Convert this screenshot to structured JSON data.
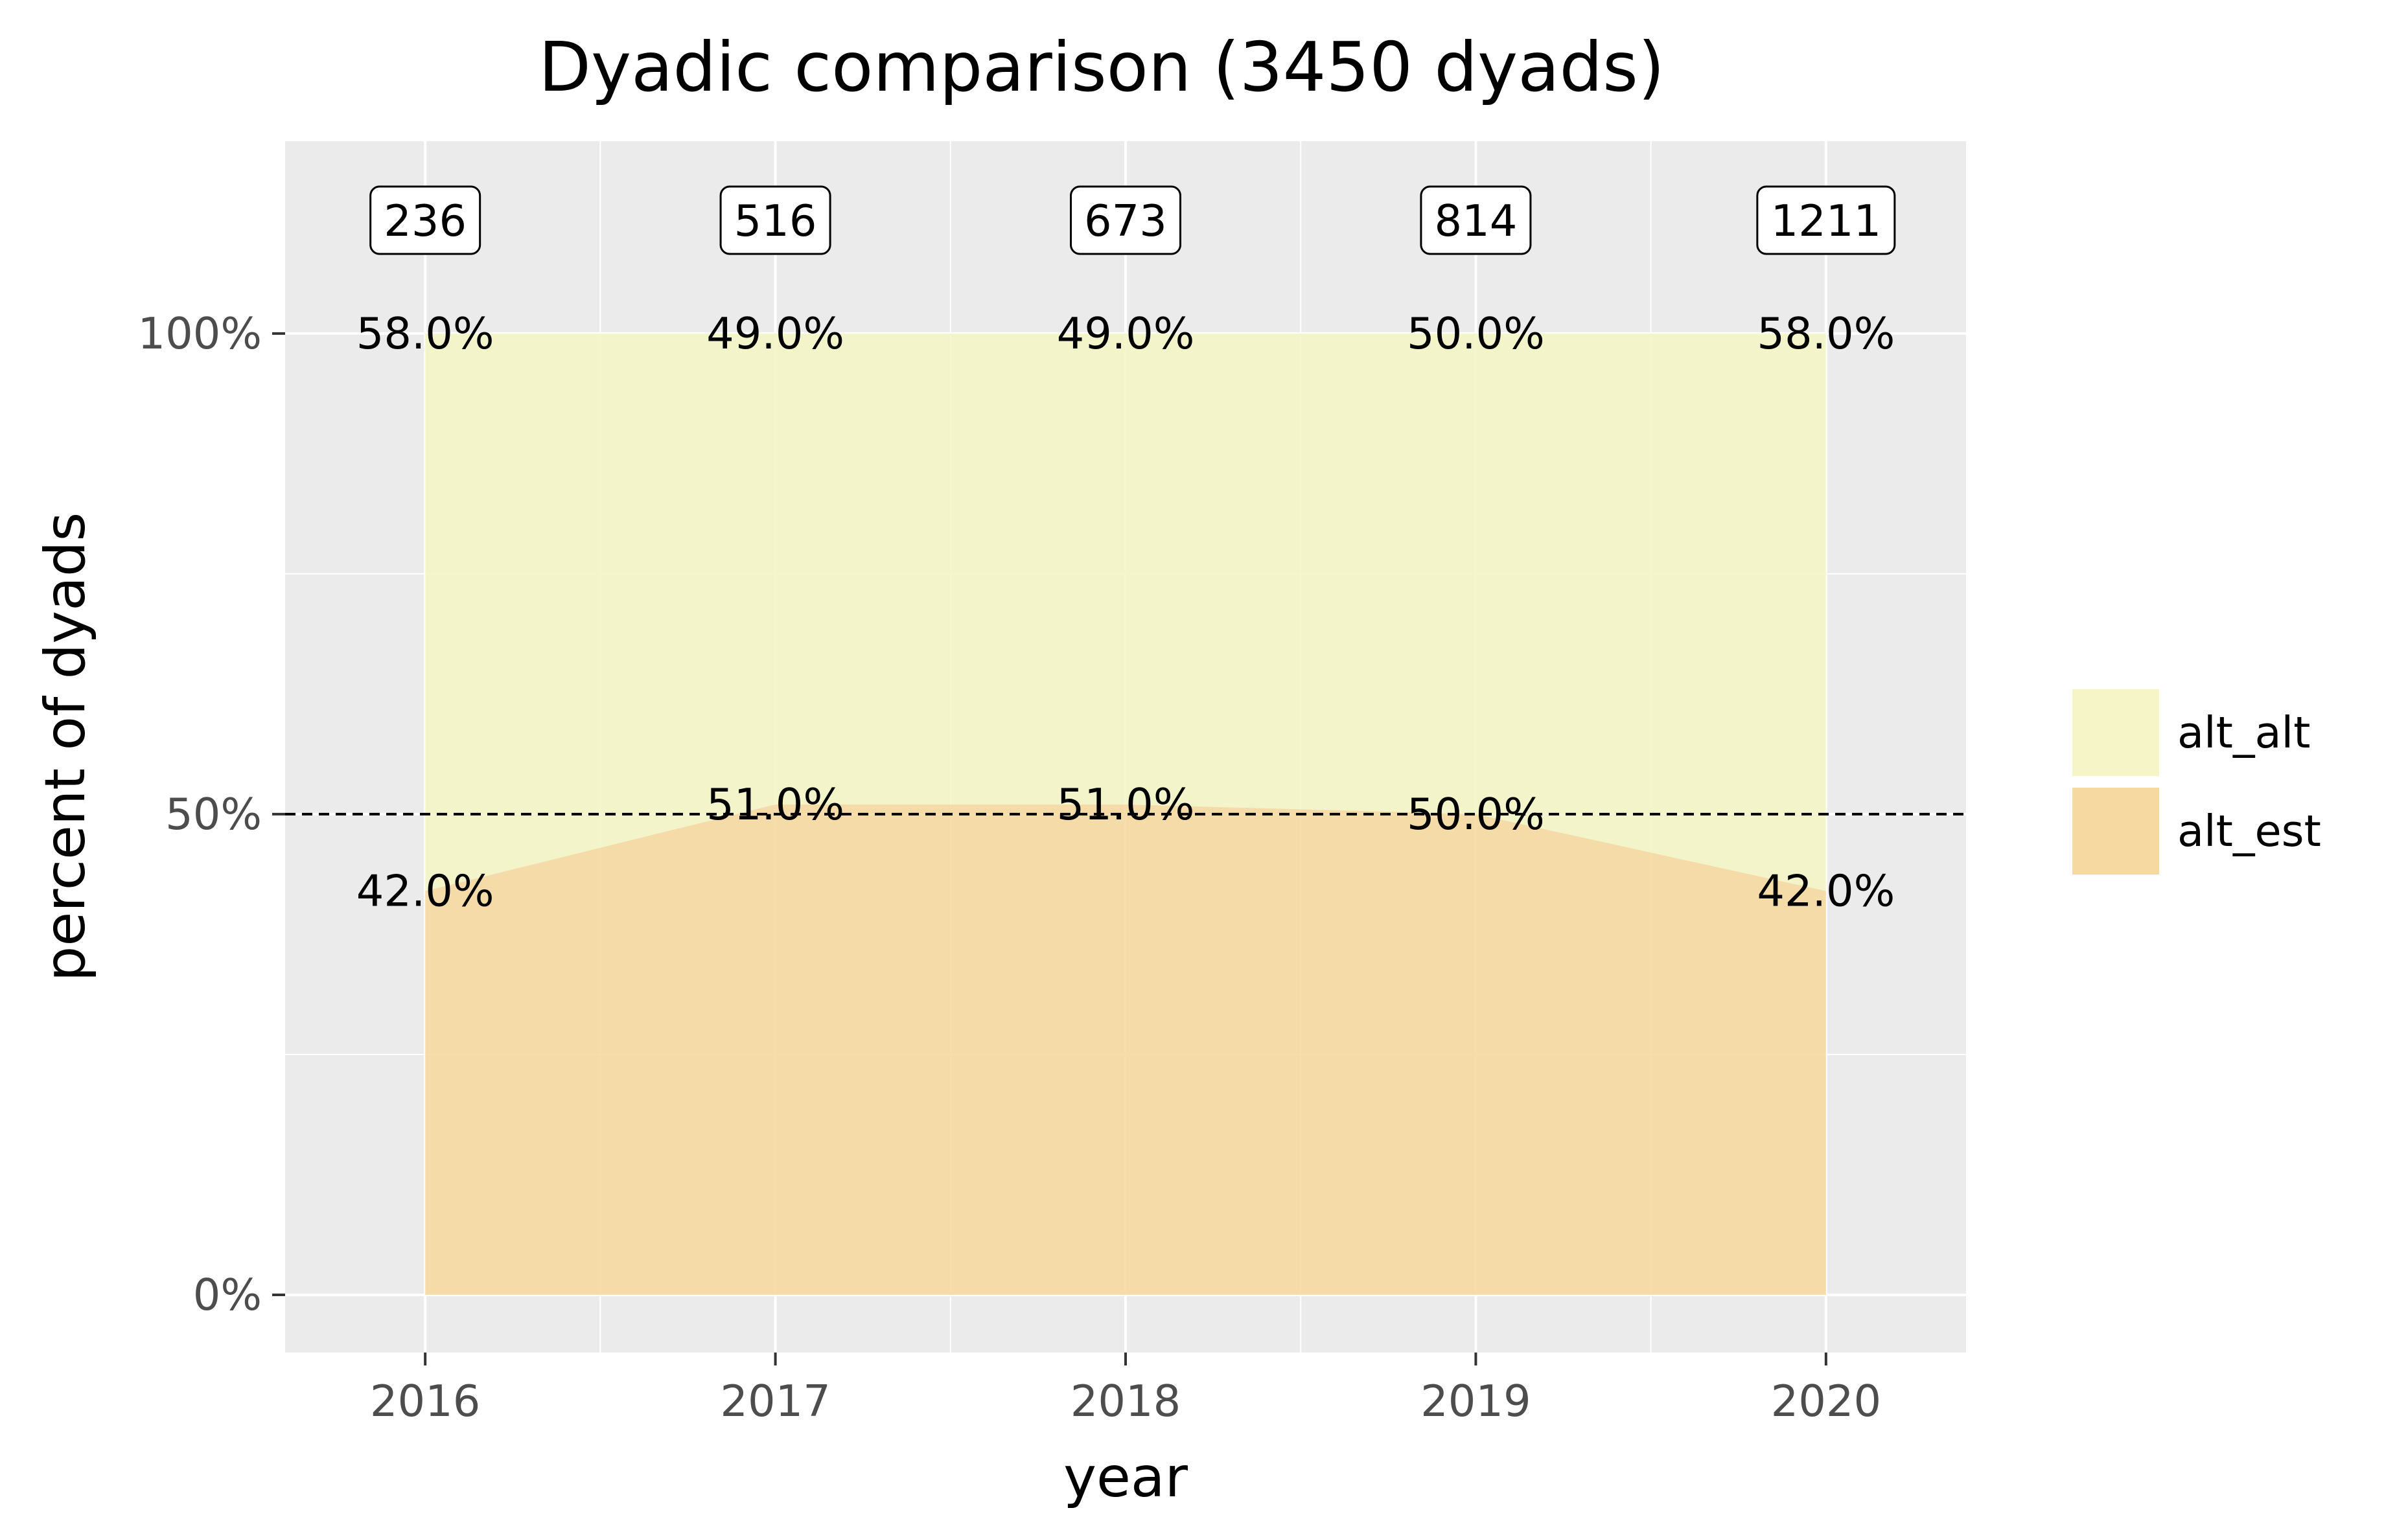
{
  "chart_data": {
    "type": "area",
    "stacked": true,
    "title": "Dyadic comparison (3450 dyads)",
    "xlabel": "year",
    "ylabel": "percent of dyads",
    "x": [
      2016,
      2017,
      2018,
      2019,
      2020
    ],
    "x_tick_labels": [
      "2016",
      "2017",
      "2018",
      "2019",
      "2020"
    ],
    "y_ticks": [
      0,
      50,
      100
    ],
    "y_tick_labels": [
      "0%",
      "50%",
      "100%"
    ],
    "ylim": [
      -6,
      120
    ],
    "xlim": [
      2015.6,
      2020.4
    ],
    "grid": true,
    "legend_position": "right",
    "reference_line": {
      "y": 50,
      "style": "dashed",
      "color": "#000000"
    },
    "counts": [
      "236",
      "516",
      "673",
      "814",
      "1211"
    ],
    "series": [
      {
        "name": "alt_alt",
        "color": "#f5f5c8",
        "values": [
          58.0,
          49.0,
          49.0,
          50.0,
          58.0
        ],
        "labels": [
          "58.0%",
          "49.0%",
          "49.0%",
          "50.0%",
          "58.0%"
        ]
      },
      {
        "name": "alt_est",
        "color": "#f5d9a1",
        "values": [
          42.0,
          51.0,
          51.0,
          50.0,
          42.0
        ],
        "labels": [
          "42.0%",
          "51.0%",
          "51.0%",
          "50.0%",
          "42.0%"
        ]
      }
    ]
  }
}
